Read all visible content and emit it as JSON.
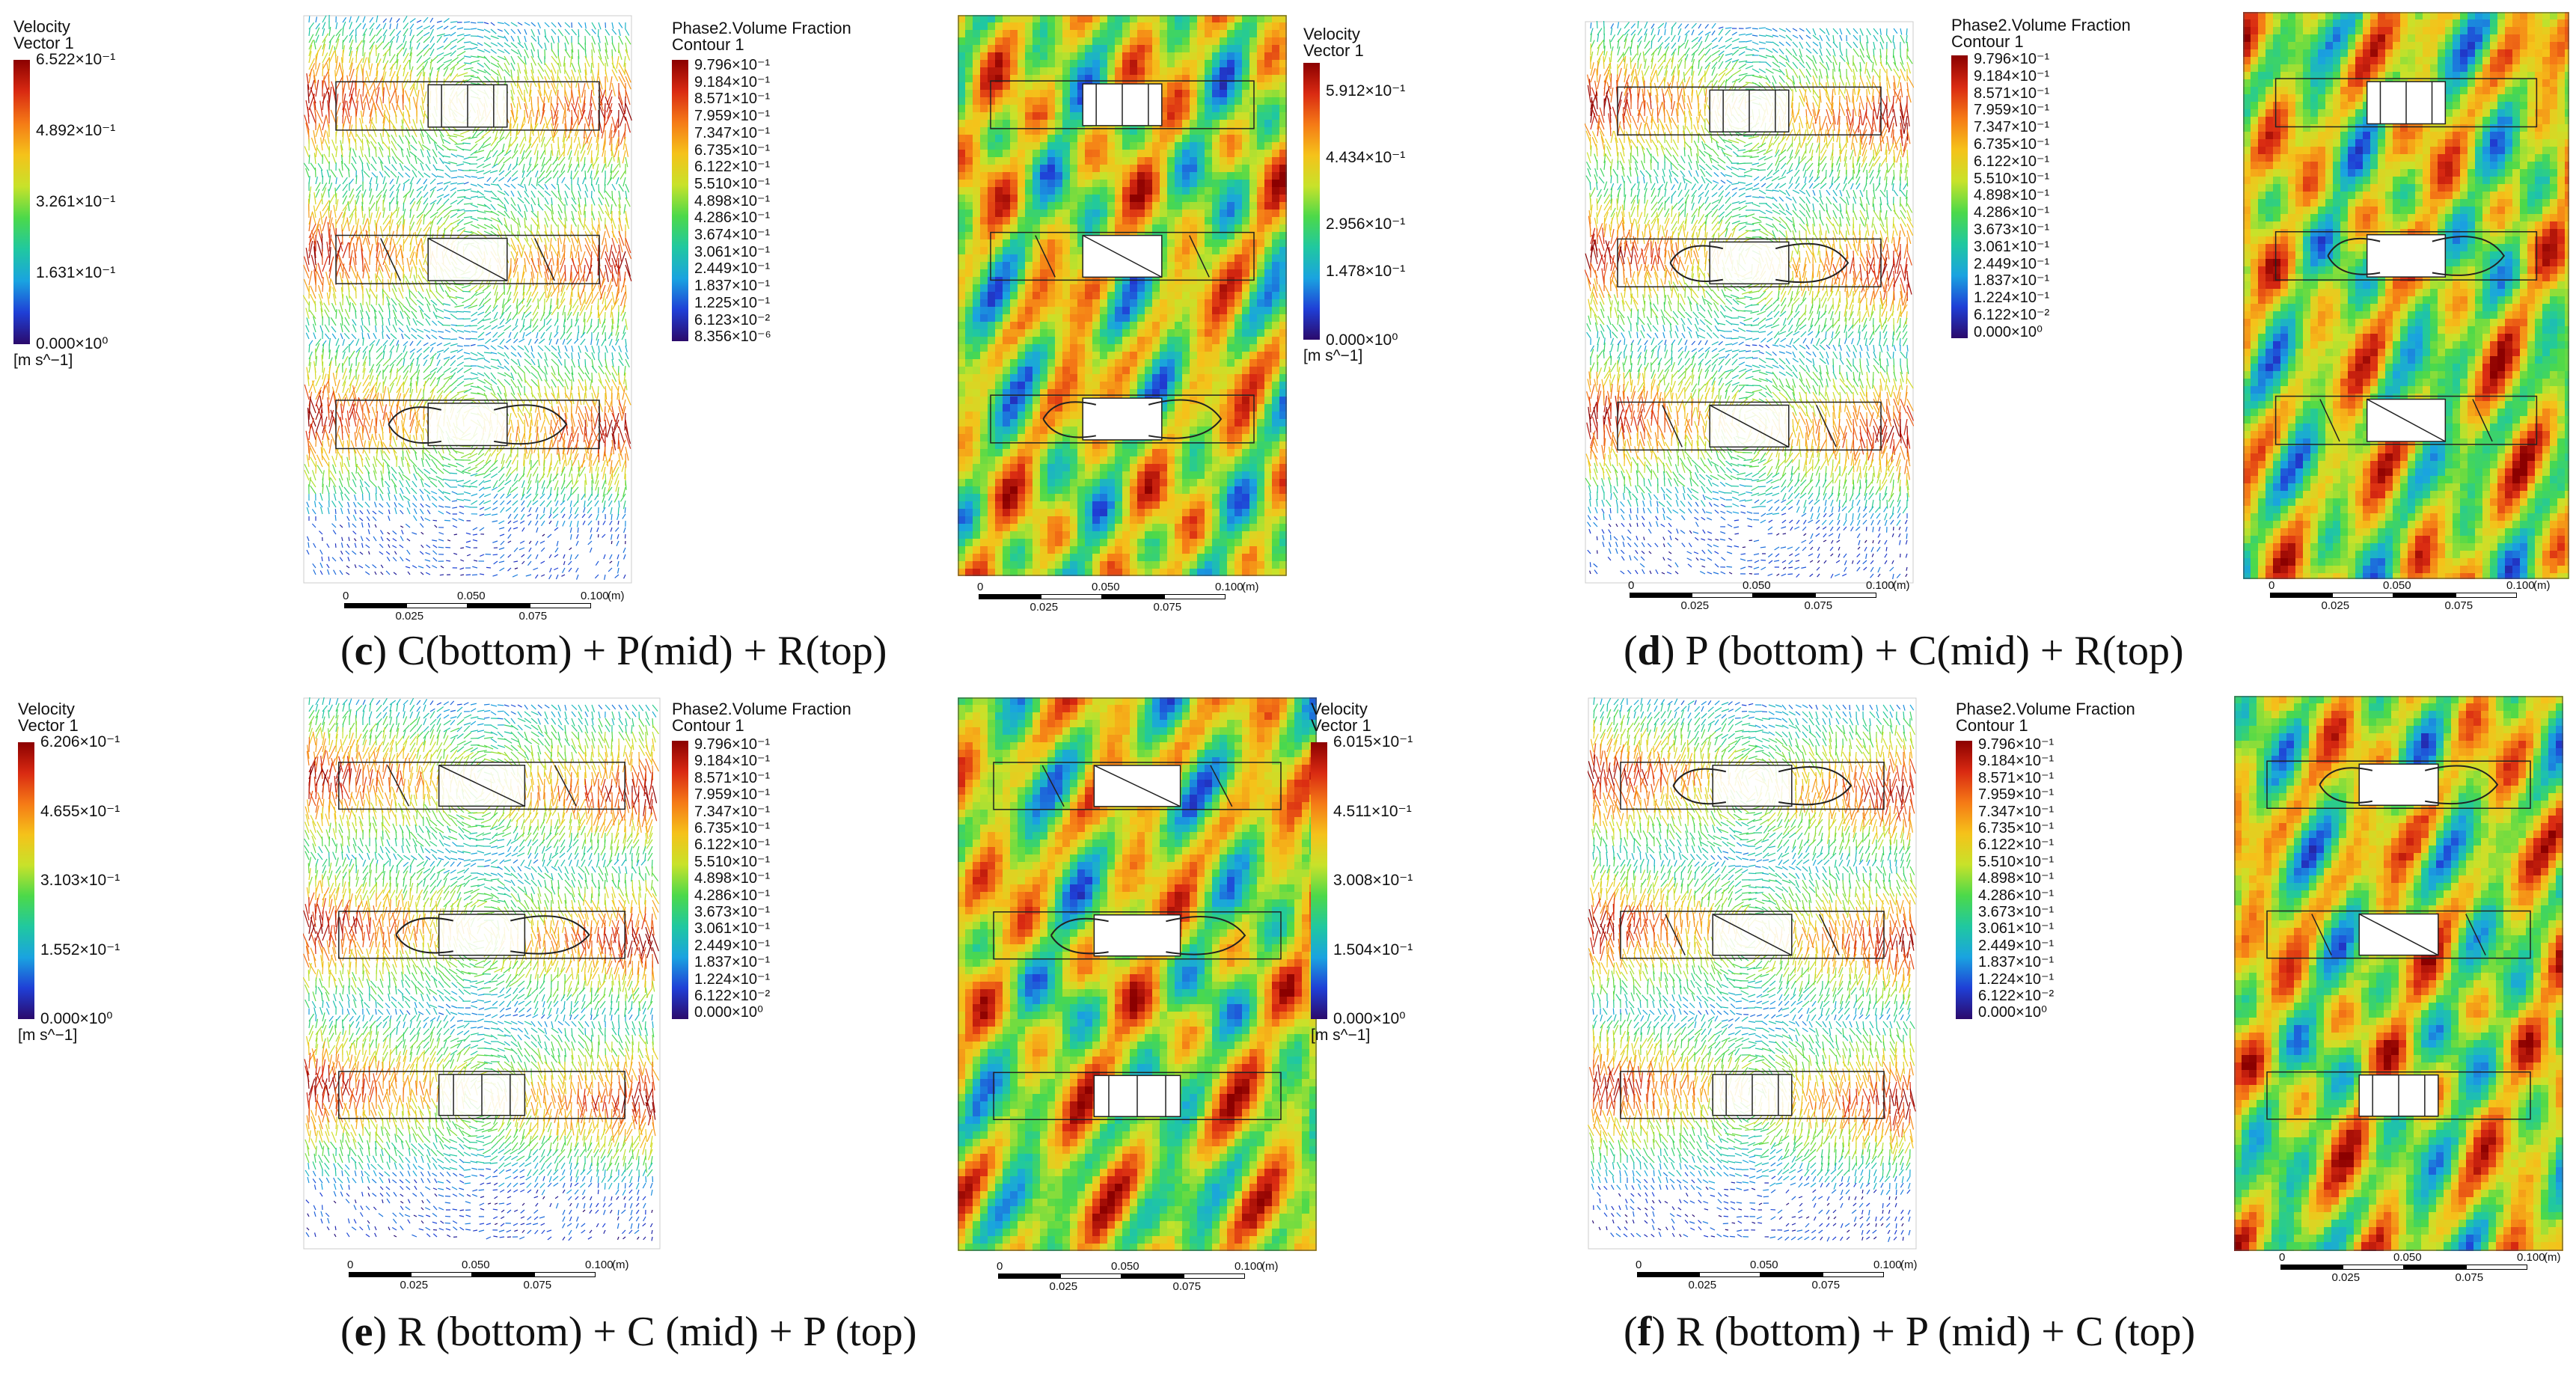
{
  "colormap": {
    "stops": [
      "#2b0a6b",
      "#1f3fd6",
      "#1aa3e0",
      "#20c8a0",
      "#4cd94a",
      "#c8e22a",
      "#f5c21a",
      "#f57a16",
      "#d92a12",
      "#8b0000"
    ]
  },
  "panels": [
    {
      "id": "c",
      "caption_letter": "c",
      "caption_text": " C(bottom) + P(mid) + R(top)",
      "velocity": {
        "title1": "Velocity",
        "title2": "Vector 1",
        "ticks": [
          "6.522×10⁻¹",
          "4.892×10⁻¹",
          "3.261×10⁻¹",
          "1.631×10⁻¹",
          "0.000×10⁰"
        ],
        "unit": "[m s^−1]"
      },
      "fraction": {
        "title1": "Phase2.Volume Fraction",
        "title2": "Contour 1",
        "ticks": [
          "9.796×10⁻¹",
          "9.184×10⁻¹",
          "8.571×10⁻¹",
          "7.959×10⁻¹",
          "7.347×10⁻¹",
          "6.735×10⁻¹",
          "6.122×10⁻¹",
          "5.510×10⁻¹",
          "4.898×10⁻¹",
          "4.286×10⁻¹",
          "3.674×10⁻¹",
          "3.061×10⁻¹",
          "2.449×10⁻¹",
          "1.837×10⁻¹",
          "1.225×10⁻¹",
          "6.123×10⁻²",
          "8.356×10⁻⁶"
        ]
      },
      "velocity2": {
        "title1": "Velocity",
        "title2": "Vector 1",
        "ticks": [
          "5.912×10⁻¹",
          "4.434×10⁻¹",
          "2.956×10⁻¹",
          "1.478×10⁻¹",
          "0.000×10⁰"
        ],
        "unit": "[m s^−1]"
      },
      "scale": {
        "top": [
          "0",
          "0.050",
          "0.100",
          "(m)"
        ],
        "bottom": [
          "0.025",
          "0.075"
        ]
      }
    },
    {
      "id": "d",
      "caption_letter": "d",
      "caption_text": " P (bottom) + C(mid) + R(top)",
      "fraction": {
        "title1": "Phase2.Volume Fraction",
        "title2": "Contour 1",
        "ticks": [
          "9.796×10⁻¹",
          "9.184×10⁻¹",
          "8.571×10⁻¹",
          "7.959×10⁻¹",
          "7.347×10⁻¹",
          "6.735×10⁻¹",
          "6.122×10⁻¹",
          "5.510×10⁻¹",
          "4.898×10⁻¹",
          "4.286×10⁻¹",
          "3.673×10⁻¹",
          "3.061×10⁻¹",
          "2.449×10⁻¹",
          "1.837×10⁻¹",
          "1.224×10⁻¹",
          "6.122×10⁻²",
          "0.000×10⁰"
        ]
      },
      "scale": {
        "top": [
          "0",
          "0.050",
          "0.100",
          "(m)"
        ],
        "bottom": [
          "0.025",
          "0.075"
        ]
      }
    },
    {
      "id": "e",
      "caption_letter": "e",
      "caption_text": " R (bottom) + C (mid) + P (top)",
      "velocity": {
        "title1": "Velocity",
        "title2": "Vector 1",
        "ticks": [
          "6.206×10⁻¹",
          "4.655×10⁻¹",
          "3.103×10⁻¹",
          "1.552×10⁻¹",
          "0.000×10⁰"
        ],
        "unit": "[m s^−1]"
      },
      "fraction": {
        "title1": "Phase2.Volume Fraction",
        "title2": "Contour 1",
        "ticks": [
          "9.796×10⁻¹",
          "9.184×10⁻¹",
          "8.571×10⁻¹",
          "7.959×10⁻¹",
          "7.347×10⁻¹",
          "6.735×10⁻¹",
          "6.122×10⁻¹",
          "5.510×10⁻¹",
          "4.898×10⁻¹",
          "4.286×10⁻¹",
          "3.673×10⁻¹",
          "3.061×10⁻¹",
          "2.449×10⁻¹",
          "1.837×10⁻¹",
          "1.224×10⁻¹",
          "6.122×10⁻²",
          "0.000×10⁰"
        ]
      },
      "velocity2": {
        "title1": "Velocity",
        "title2": "Vector 1",
        "ticks": [
          "6.015×10⁻¹",
          "4.511×10⁻¹",
          "3.008×10⁻¹",
          "1.504×10⁻¹",
          "0.000×10⁰"
        ],
        "unit": "[m s^−1]"
      },
      "scale": {
        "top": [
          "0",
          "0.050",
          "0.100",
          "(m)"
        ],
        "bottom": [
          "0.025",
          "0.075"
        ]
      }
    },
    {
      "id": "f",
      "caption_letter": "f",
      "caption_text": " R (bottom) + P (mid) + C (top)",
      "fraction": {
        "title1": "Phase2.Volume Fraction",
        "title2": "Contour 1",
        "ticks": [
          "9.796×10⁻¹",
          "9.184×10⁻¹",
          "8.571×10⁻¹",
          "7.959×10⁻¹",
          "7.347×10⁻¹",
          "6.735×10⁻¹",
          "6.122×10⁻¹",
          "5.510×10⁻¹",
          "4.898×10⁻¹",
          "4.286×10⁻¹",
          "3.673×10⁻¹",
          "3.061×10⁻¹",
          "2.449×10⁻¹",
          "1.837×10⁻¹",
          "1.224×10⁻¹",
          "6.122×10⁻²",
          "0.000×10⁰"
        ]
      },
      "scale": {
        "top": [
          "0",
          "0.050",
          "0.100",
          "(m)"
        ],
        "bottom": [
          "0.025",
          "0.075"
        ]
      }
    }
  ]
}
